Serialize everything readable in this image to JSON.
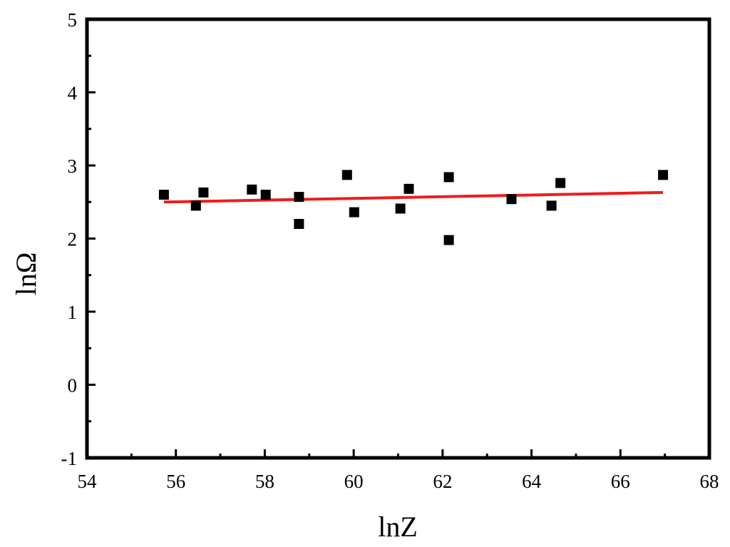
{
  "chart_data": {
    "type": "scatter",
    "xlabel": "lnZ",
    "ylabel": "lnΩ",
    "xlim": [
      54,
      68
    ],
    "ylim": [
      -1,
      5
    ],
    "x_major_ticks": [
      54,
      56,
      58,
      60,
      62,
      64,
      66,
      68
    ],
    "x_tick_labels": [
      "54",
      "56",
      "58",
      "60",
      "62",
      "64",
      "66",
      "68"
    ],
    "y_major_ticks": [
      -1,
      0,
      1,
      2,
      3,
      4,
      5
    ],
    "y_tick_labels": [
      "-1",
      "0",
      "1",
      "2",
      "3",
      "4",
      "5"
    ],
    "grid": false,
    "series": [
      {
        "kind": "scatter",
        "marker": "square",
        "color": "#000000",
        "points": [
          {
            "x": 55.73,
            "y": 2.6
          },
          {
            "x": 56.45,
            "y": 2.45
          },
          {
            "x": 56.62,
            "y": 2.63
          },
          {
            "x": 57.71,
            "y": 2.67
          },
          {
            "x": 58.02,
            "y": 2.6
          },
          {
            "x": 58.77,
            "y": 2.57
          },
          {
            "x": 58.77,
            "y": 2.2
          },
          {
            "x": 59.85,
            "y": 2.87
          },
          {
            "x": 60.01,
            "y": 2.36
          },
          {
            "x": 61.05,
            "y": 2.41
          },
          {
            "x": 61.24,
            "y": 2.68
          },
          {
            "x": 62.14,
            "y": 2.84
          },
          {
            "x": 62.14,
            "y": 1.98
          },
          {
            "x": 63.55,
            "y": 2.54
          },
          {
            "x": 64.45,
            "y": 2.45
          },
          {
            "x": 64.65,
            "y": 2.76
          },
          {
            "x": 66.96,
            "y": 2.87
          }
        ]
      },
      {
        "kind": "line",
        "color": "#ee1c1c",
        "points": [
          {
            "x": 55.73,
            "y": 2.5
          },
          {
            "x": 66.96,
            "y": 2.63
          }
        ]
      }
    ]
  }
}
